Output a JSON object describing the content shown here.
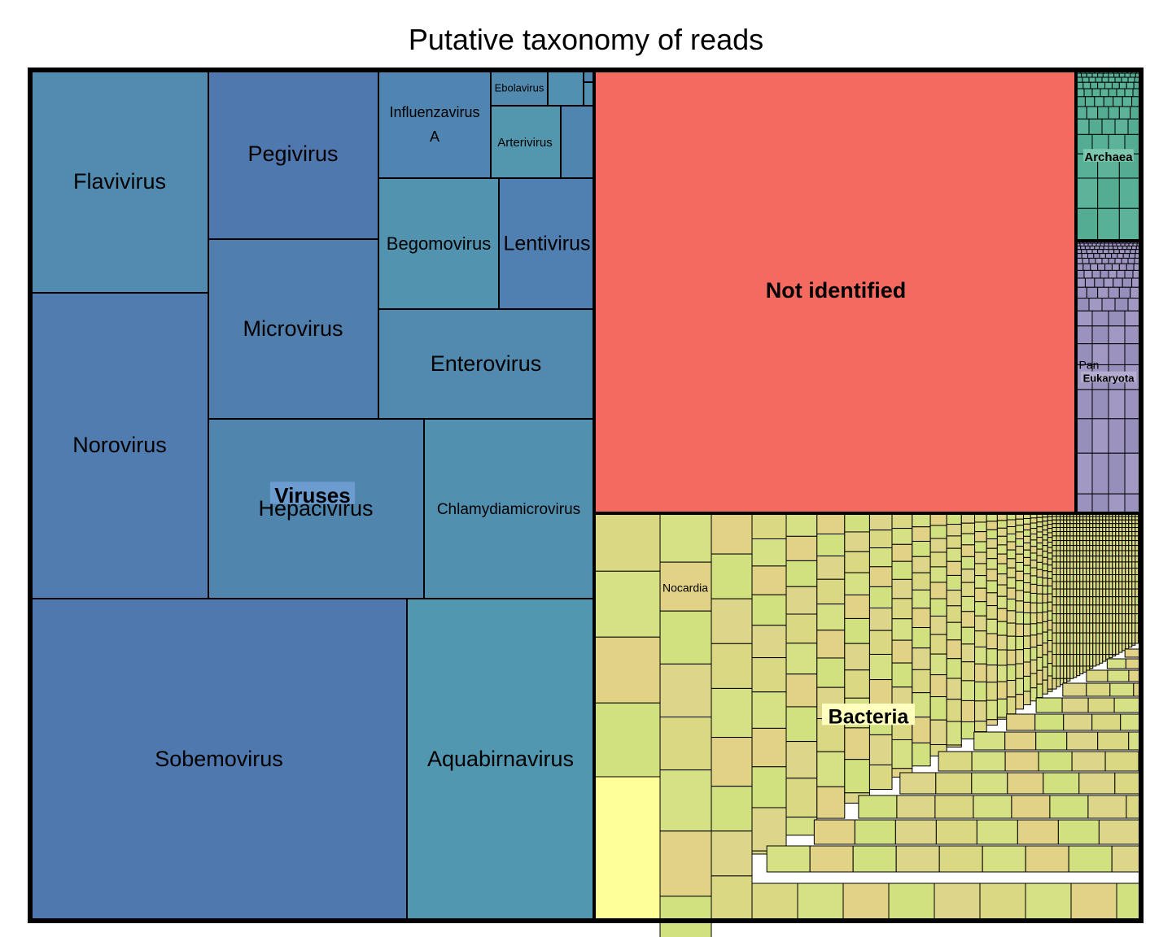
{
  "chart_data": {
    "type": "treemap",
    "title": "Putative taxonomy of reads",
    "groups": [
      {
        "name": "Viruses",
        "color": "#4f79ad",
        "children": [
          {
            "name": "Sobemovirus",
            "color": "#4f78ae"
          },
          {
            "name": "Norovirus",
            "color": "#507cb0"
          },
          {
            "name": "Aquabirnavirus",
            "color": "#5297b0"
          },
          {
            "name": "Hepacivirus",
            "color": "#5086ae"
          },
          {
            "name": "Flavivirus",
            "color": "#518cb0"
          },
          {
            "name": "Chlamydiamicrovirus",
            "color": "#5290b0"
          },
          {
            "name": "Microvirus",
            "color": "#507fae"
          },
          {
            "name": "Pegivirus",
            "color": "#4f78ae"
          },
          {
            "name": "Enterovirus",
            "color": "#518aae"
          },
          {
            "name": "Begomovirus",
            "color": "#5294b0"
          },
          {
            "name": "Lentivirus",
            "color": "#4f80b1"
          },
          {
            "name": "Influenzavirus A",
            "color": "#5085b2"
          },
          {
            "name": "Arterivirus",
            "color": "#5297ae"
          },
          {
            "name": "Ebolavirus",
            "color": "#518aae"
          }
        ]
      },
      {
        "name": "Not identified",
        "color": "#f56a60",
        "children": []
      },
      {
        "name": "Bacteria",
        "color": "#d9df84",
        "children": [
          {
            "name": "Nocardia"
          }
        ]
      },
      {
        "name": "Archaea",
        "color": "#58b196",
        "children": []
      },
      {
        "name": "Eukaryota",
        "color": "#9b92bf",
        "children": [
          {
            "name": "Pan"
          }
        ]
      }
    ],
    "bacteria_palette": [
      "#dbd884",
      "#d6e084",
      "#e2d285",
      "#d2e180",
      "#ddd68a"
    ]
  }
}
